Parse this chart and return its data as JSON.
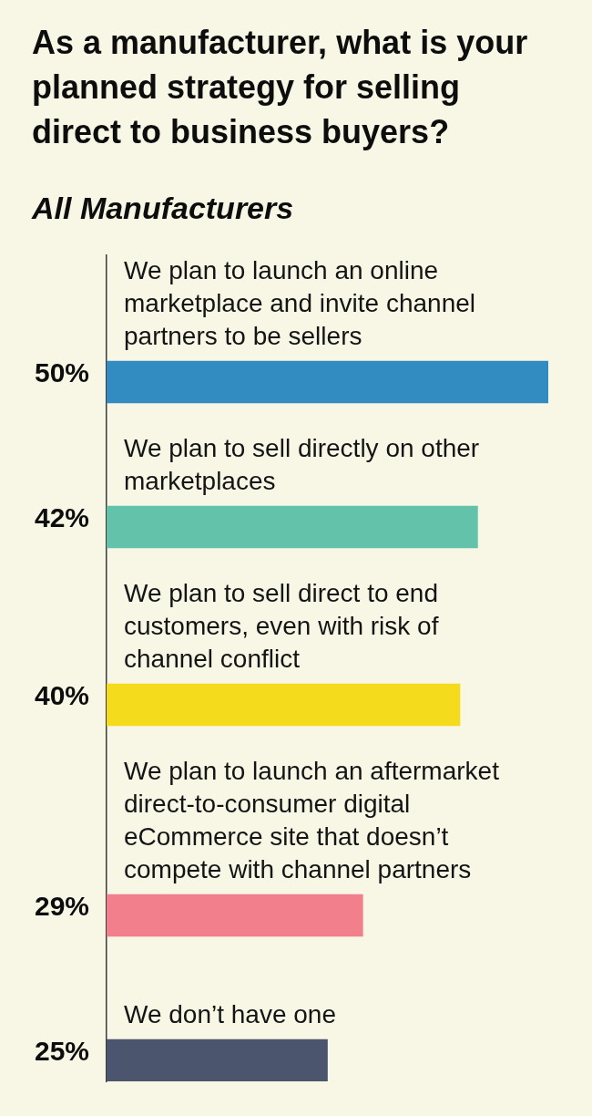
{
  "chart_data": {
    "type": "bar",
    "orientation": "horizontal",
    "title": "As a manufacturer, what is your planned strategy for selling direct to business buyers?",
    "subtitle": "All Manufacturers",
    "categories": [
      "We plan to launch an online marketplace and invite channel partners to be sellers",
      "We plan to sell directly on other marketplaces",
      "We plan to sell direct to end customers, even with risk of channel conflict",
      "We plan to launch an aftermarket direct-to-consumer digital eCommerce site that doesn’t compete with channel partners",
      "We don’t have one"
    ],
    "values": [
      50,
      42,
      40,
      29,
      25
    ],
    "value_labels": [
      "50%",
      "42%",
      "40%",
      "29%",
      "25%"
    ],
    "colors": [
      "#328bc1",
      "#62c3aa",
      "#f4dc1c",
      "#f17f8c",
      "#4b566e"
    ],
    "tick_labels": "y"
  }
}
